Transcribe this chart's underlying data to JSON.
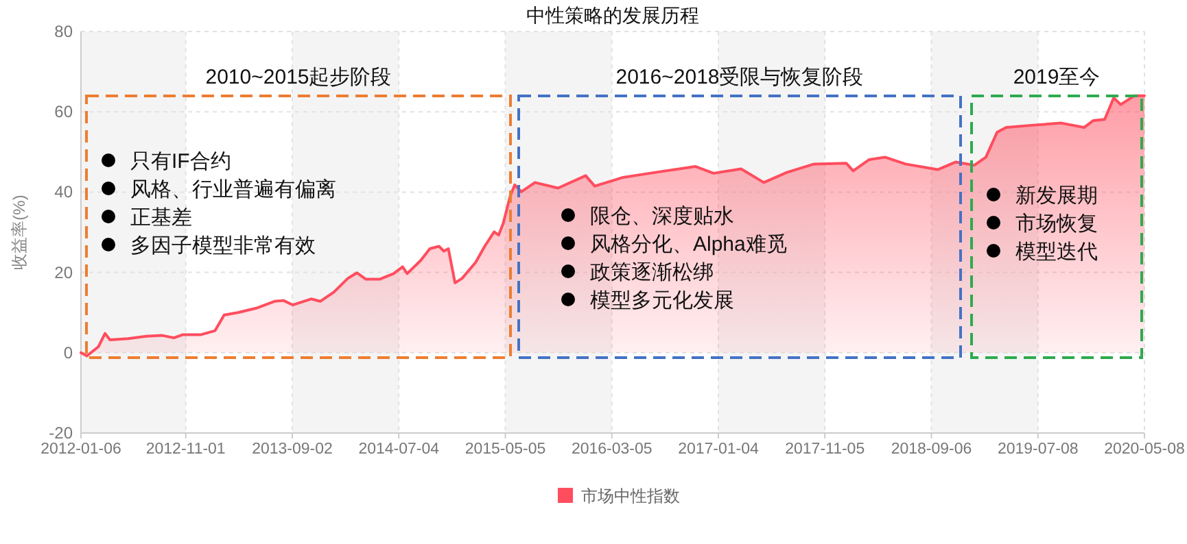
{
  "chart_data": {
    "type": "area",
    "title": "中性策略的发展历程",
    "ylabel": "收益率(%)",
    "xlim": [
      "2012-01-06",
      "2020-05-08"
    ],
    "xticks": [
      "2012-01-06",
      "2012-11-01",
      "2013-09-02",
      "2014-07-04",
      "2015-05-05",
      "2016-03-05",
      "2017-01-04",
      "2017-11-05",
      "2018-09-06",
      "2019-07-08",
      "2020-05-08"
    ],
    "ylim": [
      -20,
      80
    ],
    "yticks": [
      -20,
      0,
      20,
      40,
      60,
      80
    ],
    "grid": true,
    "legend": "bottom",
    "x": [
      "2012-01-06",
      "2012-01-23",
      "2012-02-25",
      "2012-03-15",
      "2012-03-29",
      "2012-05-20",
      "2012-07-11",
      "2012-08-26",
      "2012-09-28",
      "2012-10-24",
      "2012-12-15",
      "2013-01-24",
      "2013-02-19",
      "2013-03-30",
      "2013-05-22",
      "2013-07-13",
      "2013-08-08",
      "2013-09-03",
      "2013-10-26",
      "2013-11-21",
      "2013-12-30",
      "2014-02-08",
      "2014-03-06",
      "2014-04-01",
      "2014-05-10",
      "2014-06-19",
      "2014-07-15",
      "2014-07-28",
      "2014-09-05",
      "2014-10-01",
      "2014-10-27",
      "2014-11-10",
      "2014-11-23",
      "2014-12-12",
      "2015-01-01",
      "2015-02-09",
      "2015-03-07",
      "2015-04-03",
      "2015-04-16",
      "2015-04-29",
      "2015-05-19",
      "2015-06-01",
      "2015-06-20",
      "2015-07-29",
      "2015-10-03",
      "2015-12-21",
      "2016-01-16",
      "2016-04-03",
      "2016-06-21",
      "2016-10-30",
      "2016-12-21",
      "2017-03-10",
      "2017-05-14",
      "2017-07-19",
      "2017-10-05",
      "2018-01-05",
      "2018-01-25",
      "2018-03-12",
      "2018-04-26",
      "2018-06-24",
      "2018-09-24",
      "2018-11-15",
      "2019-01-07",
      "2019-02-09",
      "2019-03-13",
      "2019-04-08",
      "2019-06-13",
      "2019-09-13",
      "2019-11-17",
      "2019-12-13",
      "2020-01-15",
      "2020-02-10",
      "2020-03-01",
      "2020-04-09",
      "2020-05-08"
    ],
    "series": [
      {
        "name": "市场中性指数",
        "color": "#ff4d5e",
        "values": [
          0,
          -0.8,
          1.5,
          4.8,
          3.2,
          3.5,
          4.1,
          4.3,
          3.7,
          4.5,
          4.5,
          5.5,
          9.4,
          10,
          11.1,
          12.8,
          13,
          11.9,
          13.4,
          12.8,
          15.1,
          18.5,
          19.9,
          18.3,
          18.3,
          19.7,
          21.4,
          19.7,
          23,
          25.9,
          26.5,
          25.3,
          25.9,
          17.4,
          18.5,
          22.5,
          26.5,
          30.1,
          29.3,
          32.2,
          39,
          41.8,
          40.1,
          42.4,
          41,
          44.1,
          41.5,
          43.6,
          44.7,
          46.4,
          44.7,
          45.8,
          42.4,
          44.9,
          47,
          47.2,
          45.3,
          48.1,
          48.7,
          47,
          45.6,
          47.5,
          46.7,
          48.7,
          54.9,
          56.1,
          56.6,
          57.2,
          56.1,
          57.8,
          58.1,
          63.5,
          61.8,
          64,
          64
        ]
      }
    ],
    "annotations": [
      "2010~2015起步阶段",
      "只有IF合约",
      "风格、行业普遍有偏离",
      "正基差",
      "多因子模型非常有效",
      "2016~2018受限与恢复阶段",
      "限仓、深度贴水",
      "风格分化、Alpha难觅",
      "政策逐渐松绑",
      "模型多元化发展",
      "2019至今",
      "新发展期",
      "市场恢复",
      "模型迭代"
    ]
  }
}
